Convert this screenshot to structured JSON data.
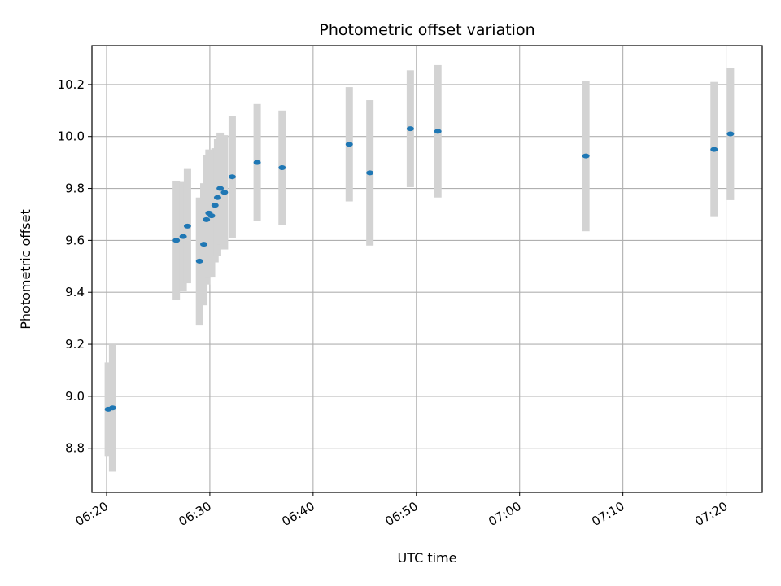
{
  "chart_data": {
    "type": "scatter",
    "title": "Photometric offset variation",
    "xlabel": "UTC time",
    "ylabel": "Photometric offset",
    "xlim": [
      "06:18:35",
      "07:23:30"
    ],
    "ylim": [
      8.63,
      10.35
    ],
    "grid": true,
    "x_ticks": [
      "06:20",
      "06:30",
      "06:40",
      "06:50",
      "07:00",
      "07:10",
      "07:20"
    ],
    "y_ticks": [
      "8.8",
      "9.0",
      "9.2",
      "9.4",
      "9.6",
      "9.8",
      "10.0",
      "10.2"
    ],
    "series": [
      {
        "marker": "dot",
        "errorbar_style": "vertical bar",
        "points": [
          {
            "time": "06:20:10",
            "value": 8.95,
            "error": 0.18
          },
          {
            "time": "06:20:35",
            "value": 8.955,
            "error": 0.245
          },
          {
            "time": "06:26:45",
            "value": 9.6,
            "error": 0.23
          },
          {
            "time": "06:27:25",
            "value": 9.615,
            "error": 0.21
          },
          {
            "time": "06:27:50",
            "value": 9.655,
            "error": 0.22
          },
          {
            "time": "06:29:00",
            "value": 9.52,
            "error": 0.245
          },
          {
            "time": "06:29:25",
            "value": 9.585,
            "error": 0.235
          },
          {
            "time": "06:29:40",
            "value": 9.68,
            "error": 0.25
          },
          {
            "time": "06:29:55",
            "value": 9.705,
            "error": 0.245
          },
          {
            "time": "06:30:10",
            "value": 9.695,
            "error": 0.235
          },
          {
            "time": "06:30:30",
            "value": 9.735,
            "error": 0.22
          },
          {
            "time": "06:30:45",
            "value": 9.765,
            "error": 0.225
          },
          {
            "time": "06:31:00",
            "value": 9.8,
            "error": 0.215
          },
          {
            "time": "06:31:25",
            "value": 9.785,
            "error": 0.22
          },
          {
            "time": "06:32:10",
            "value": 9.845,
            "error": 0.235
          },
          {
            "time": "06:34:35",
            "value": 9.9,
            "error": 0.225
          },
          {
            "time": "06:37:00",
            "value": 9.88,
            "error": 0.22
          },
          {
            "time": "06:43:30",
            "value": 9.97,
            "error": 0.22
          },
          {
            "time": "06:45:30",
            "value": 9.86,
            "error": 0.28
          },
          {
            "time": "06:49:25",
            "value": 10.03,
            "error": 0.225
          },
          {
            "time": "06:52:05",
            "value": 10.02,
            "error": 0.255
          },
          {
            "time": "07:06:25",
            "value": 9.925,
            "error": 0.29
          },
          {
            "time": "07:18:50",
            "value": 9.95,
            "error": 0.26
          },
          {
            "time": "07:20:25",
            "value": 10.01,
            "error": 0.255
          }
        ]
      }
    ],
    "colors": {
      "marker": "#1f77b4",
      "errorbar": "#d3d3d3",
      "grid": "#b0b0b0"
    }
  }
}
